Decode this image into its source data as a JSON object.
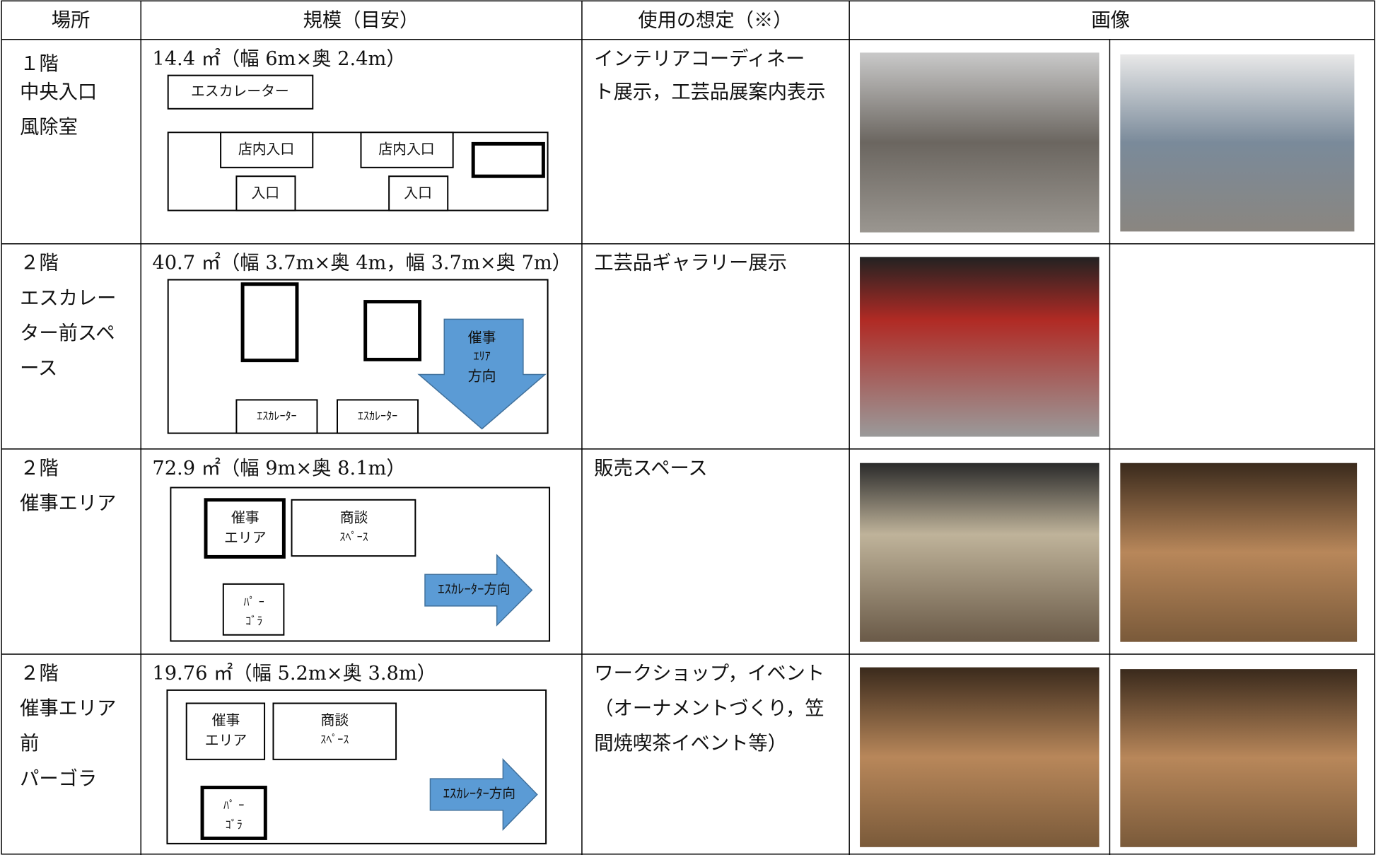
{
  "table": {
    "header": [
      "場所",
      "規模（目安）",
      "使用の想定（※）",
      "画像"
    ],
    "rows": [
      {
        "place": [
          "１階",
          "中央入口",
          "風除室"
        ],
        "scale": "14.4 ㎡（幅 6m×奥 2.4m）",
        "diagram": [
          "エスカレーター",
          "店内入口",
          "店内入口",
          "入口",
          "入口"
        ],
        "usage": [
          "インテリアコーディネー",
          "ト展示，工芸品展案内表示"
        ]
      },
      {
        "place": [
          "２階",
          "エスカレー",
          "ター前スペ",
          "ース"
        ],
        "scale": "40.7 ㎡（幅 3.7m×奥 4m，幅 3.7m×奥 7m）",
        "diagram": [
          "催事",
          "ｴﾘｱ",
          "方向",
          "ｴｽｶﾚｰﾀｰ",
          "ｴｽｶﾚｰﾀｰ"
        ],
        "usage": [
          "工芸品ギャラリー展示"
        ]
      },
      {
        "place": [
          "２階",
          "催事エリア"
        ],
        "scale": "72.9 ㎡（幅 9m×奥 8.1m）",
        "diagram": [
          "催事",
          "エリア",
          "商談",
          "ｽﾍﾟｰｽ",
          "ﾊﾟ ｰ",
          "ｺﾞﾗ",
          "ｴｽｶﾚｰﾀｰ方向"
        ],
        "usage": [
          "販売スペース"
        ]
      },
      {
        "place": [
          "２階",
          "催事エリア",
          "前",
          "パーゴラ"
        ],
        "scale": "19.76 ㎡（幅 5.2m×奥 3.8m）",
        "diagram": [
          "催事",
          "エリア",
          "商談",
          "ｽﾍﾟｰｽ",
          "ﾊﾟ ｰ",
          "ｺﾞﾗ",
          "ｴｽｶﾚｰﾀｰ方向"
        ],
        "usage": [
          "ワークショップ，イベント",
          "（オーナメントづくり，笠",
          "間焼喫茶イベント等）"
        ]
      }
    ]
  }
}
